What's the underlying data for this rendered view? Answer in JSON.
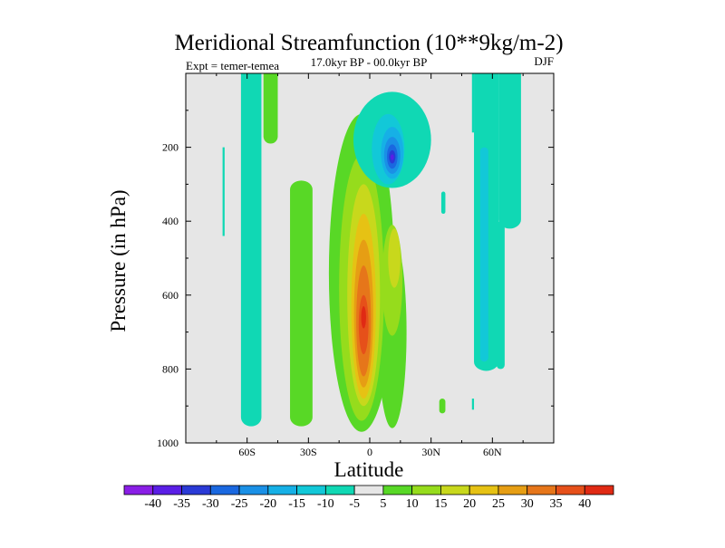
{
  "chart_data": {
    "type": "contour",
    "title": "Meridional Streamfunction (10**9kg/m-2)",
    "subtitle": "17.0kyr BP - 00.0kyr BP",
    "left_label": "Expt = temer-temea",
    "right_label": "DJF",
    "xlabel": "Latitude",
    "ylabel": "Pressure (in hPa)",
    "xlim": [
      -90,
      90
    ],
    "ylim": [
      1000,
      0
    ],
    "x_ticks": [
      {
        "value": -60,
        "label": "60S"
      },
      {
        "value": -30,
        "label": "30S"
      },
      {
        "value": 0,
        "label": "0"
      },
      {
        "value": 30,
        "label": "30N"
      },
      {
        "value": 60,
        "label": "60N"
      }
    ],
    "y_ticks": [
      {
        "value": 200,
        "label": "200"
      },
      {
        "value": 400,
        "label": "400"
      },
      {
        "value": 600,
        "label": "600"
      },
      {
        "value": 800,
        "label": "800"
      },
      {
        "value": 1000,
        "label": "1000"
      }
    ],
    "colorbar": {
      "levels": [
        "-40",
        "-35",
        "-30",
        "-25",
        "-20",
        "-15",
        "-10",
        "-5",
        "5",
        "10",
        "15",
        "20",
        "25",
        "30",
        "35",
        "40"
      ],
      "colors": [
        "#8a1ee6",
        "#5a1ee6",
        "#2a3ad6",
        "#1a68e0",
        "#1a90e6",
        "#16b0e6",
        "#12c8d8",
        "#10d8b4",
        "#e6e6e6",
        "#58d826",
        "#96dc1c",
        "#c8d81c",
        "#e6c214",
        "#e69e14",
        "#e6761a",
        "#e6501a",
        "#e02a14"
      ]
    },
    "features": [
      {
        "name": "main-positive-cell",
        "lat": [
          -15,
          15
        ],
        "p": [
          160,
          980
        ],
        "peak": 40,
        "peak_lat": -3,
        "peak_p": 680
      },
      {
        "name": "nh-negative-cell",
        "lat": [
          -5,
          30
        ],
        "p": [
          60,
          300
        ],
        "peak": -35,
        "peak_lat": 11,
        "peak_p": 225
      },
      {
        "name": "sh-negative-column",
        "lat": [
          -63,
          -52
        ],
        "p": [
          0,
          950
        ],
        "value": -5
      },
      {
        "name": "sh-positive-column",
        "lat": [
          -39,
          -28
        ],
        "p": [
          290,
          950
        ],
        "value": 5
      },
      {
        "name": "nh-negative-column",
        "lat": [
          51,
          74
        ],
        "p": [
          0,
          800
        ],
        "value": -10
      }
    ]
  }
}
